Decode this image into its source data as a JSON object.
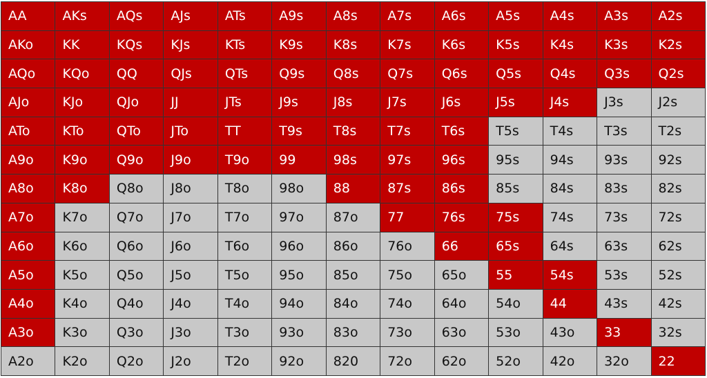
{
  "colors": {
    "in_range": "#C00000",
    "out_of_range": "#C8C8C8"
  },
  "rows": [
    [
      "AA",
      "AKs",
      "AQs",
      "AJs",
      "ATs",
      "A9s",
      "A8s",
      "A7s",
      "A6s",
      "A5s",
      "A4s",
      "A3s",
      "A2s"
    ],
    [
      "AKo",
      "KK",
      "KQs",
      "KJs",
      "KTs",
      "K9s",
      "K8s",
      "K7s",
      "K6s",
      "K5s",
      "K4s",
      "K3s",
      "K2s"
    ],
    [
      "AQo",
      "KQo",
      "QQ",
      "QJs",
      "QTs",
      "Q9s",
      "Q8s",
      "Q7s",
      "Q6s",
      "Q5s",
      "Q4s",
      "Q3s",
      "Q2s"
    ],
    [
      "AJo",
      "KJo",
      "QJo",
      "JJ",
      "JTs",
      "J9s",
      "J8s",
      "J7s",
      "J6s",
      "J5s",
      "J4s",
      "J3s",
      "J2s"
    ],
    [
      "ATo",
      "KTo",
      "QTo",
      "JTo",
      "TT",
      "T9s",
      "T8s",
      "T7s",
      "T6s",
      "T5s",
      "T4s",
      "T3s",
      "T2s"
    ],
    [
      "A9o",
      "K9o",
      "Q9o",
      "J9o",
      "T9o",
      "99",
      "98s",
      "97s",
      "96s",
      "95s",
      "94s",
      "93s",
      "92s"
    ],
    [
      "A8o",
      "K8o",
      "Q8o",
      "J8o",
      "T8o",
      "98o",
      "88",
      "87s",
      "86s",
      "85s",
      "84s",
      "83s",
      "82s"
    ],
    [
      "A7o",
      "K7o",
      "Q7o",
      "J7o",
      "T7o",
      "97o",
      "87o",
      "77",
      "76s",
      "75s",
      "74s",
      "73s",
      "72s"
    ],
    [
      "A6o",
      "K6o",
      "Q6o",
      "J6o",
      "T6o",
      "96o",
      "86o",
      "76o",
      "66",
      "65s",
      "64s",
      "63s",
      "62s"
    ],
    [
      "A5o",
      "K5o",
      "Q5o",
      "J5o",
      "T5o",
      "95o",
      "85o",
      "75o",
      "65o",
      "55",
      "54s",
      "53s",
      "52s"
    ],
    [
      "A4o",
      "K4o",
      "Q4o",
      "J4o",
      "T4o",
      "94o",
      "84o",
      "74o",
      "64o",
      "54o",
      "44",
      "43s",
      "42s"
    ],
    [
      "A3o",
      "K3o",
      "Q3o",
      "J3o",
      "T3o",
      "93o",
      "83o",
      "73o",
      "63o",
      "53o",
      "43o",
      "33",
      "32s"
    ],
    [
      "A2o",
      "K2o",
      "Q2o",
      "J2o",
      "T2o",
      "92o",
      "820",
      "72o",
      "62o",
      "52o",
      "42o",
      "32o",
      "22"
    ]
  ],
  "in_range": [
    [
      1,
      1,
      1,
      1,
      1,
      1,
      1,
      1,
      1,
      1,
      1,
      1,
      1
    ],
    [
      1,
      1,
      1,
      1,
      1,
      1,
      1,
      1,
      1,
      1,
      1,
      1,
      1
    ],
    [
      1,
      1,
      1,
      1,
      1,
      1,
      1,
      1,
      1,
      1,
      1,
      1,
      1
    ],
    [
      1,
      1,
      1,
      1,
      1,
      1,
      1,
      1,
      1,
      1,
      1,
      0,
      0
    ],
    [
      1,
      1,
      1,
      1,
      1,
      1,
      1,
      1,
      1,
      0,
      0,
      0,
      0
    ],
    [
      1,
      1,
      1,
      1,
      1,
      1,
      1,
      1,
      1,
      0,
      0,
      0,
      0
    ],
    [
      1,
      1,
      0,
      0,
      0,
      0,
      1,
      1,
      1,
      0,
      0,
      0,
      0
    ],
    [
      1,
      0,
      0,
      0,
      0,
      0,
      0,
      1,
      1,
      1,
      0,
      0,
      0
    ],
    [
      1,
      0,
      0,
      0,
      0,
      0,
      0,
      0,
      1,
      1,
      0,
      0,
      0
    ],
    [
      1,
      0,
      0,
      0,
      0,
      0,
      0,
      0,
      0,
      1,
      1,
      0,
      0
    ],
    [
      1,
      0,
      0,
      0,
      0,
      0,
      0,
      0,
      0,
      0,
      1,
      0,
      0
    ],
    [
      1,
      0,
      0,
      0,
      0,
      0,
      0,
      0,
      0,
      0,
      0,
      1,
      0
    ],
    [
      0,
      0,
      0,
      0,
      0,
      0,
      0,
      0,
      0,
      0,
      0,
      0,
      1
    ]
  ]
}
